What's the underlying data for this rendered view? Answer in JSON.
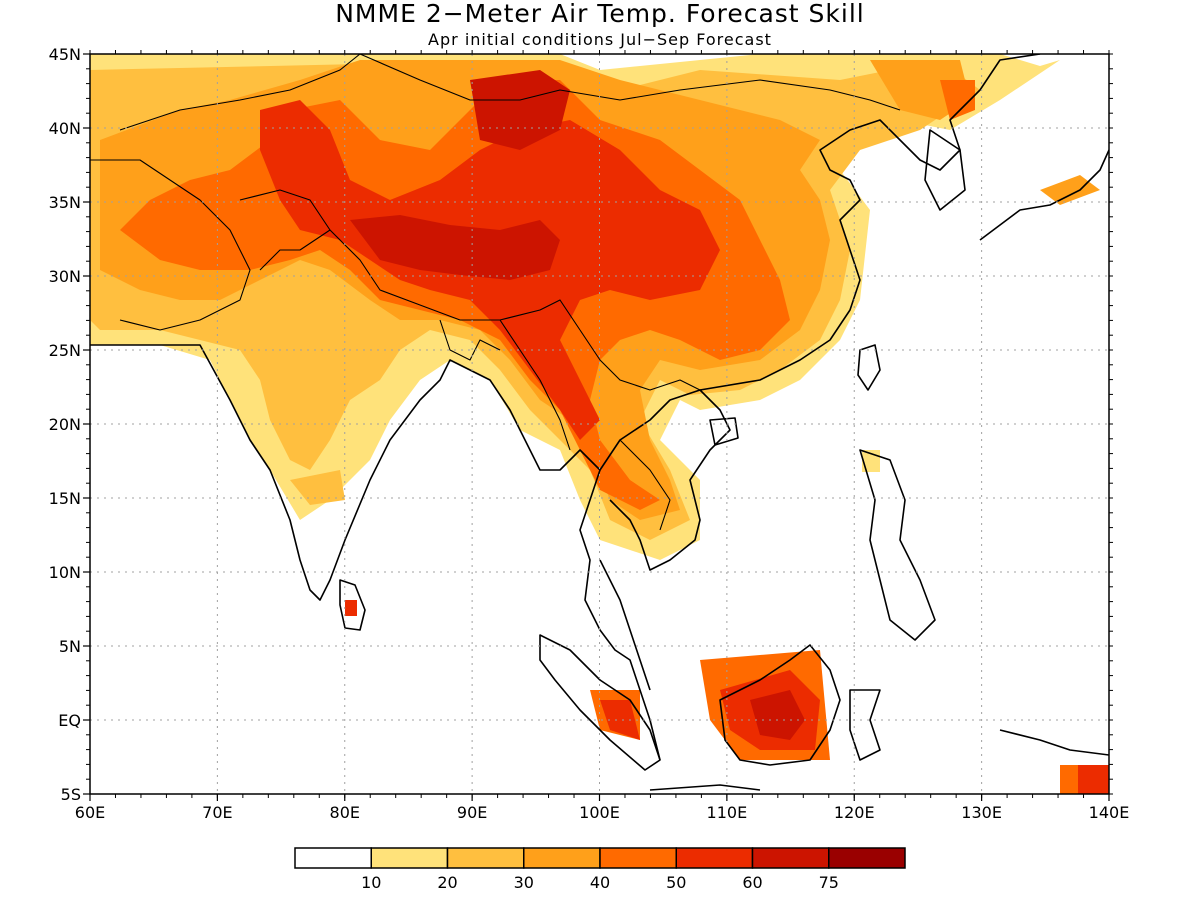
{
  "title": "NMME 2−Meter Air Temp. Forecast Skill",
  "subtitle": "Apr initial conditions  Jul−Sep Forecast",
  "map": {
    "lon_range": [
      60,
      140
    ],
    "lat_range": [
      -5,
      45
    ],
    "x_ticks": [
      "60E",
      "70E",
      "80E",
      "90E",
      "100E",
      "110E",
      "120E",
      "130E",
      "140E"
    ],
    "y_ticks": [
      "5S",
      "EQ",
      "5N",
      "10N",
      "15N",
      "20N",
      "25N",
      "30N",
      "35N",
      "40N",
      "45N"
    ],
    "grid": "dotted"
  },
  "colorbar": {
    "labels": [
      "10",
      "20",
      "30",
      "40",
      "50",
      "60",
      "75"
    ],
    "colors": [
      "#ffffff",
      "#ffe27a",
      "#ffbf3f",
      "#ffa01a",
      "#ff6a00",
      "#ec2c00",
      "#cc1400",
      "#9a0000"
    ]
  }
}
